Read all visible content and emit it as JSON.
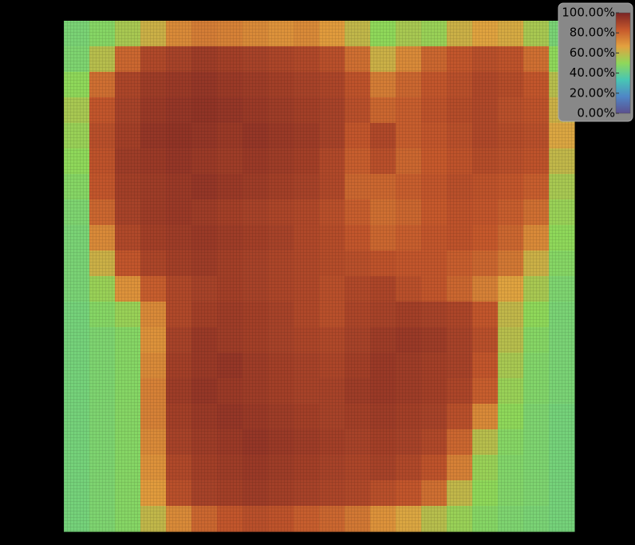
{
  "chart_data": {
    "type": "heatmap",
    "colorscale": [
      "#5b4f8e",
      "#4f86c6",
      "#48c6b4",
      "#8fd85a",
      "#e3a13f",
      "#c5582c",
      "#7a2424"
    ],
    "zlim": [
      0,
      100
    ],
    "zticks": [
      {
        "value": 0,
        "label": "0.00%"
      },
      {
        "value": 20,
        "label": "20.00%"
      },
      {
        "value": 40,
        "label": "40.00%"
      },
      {
        "value": 60,
        "label": "60.00%"
      },
      {
        "value": 80,
        "label": "80.00%"
      },
      {
        "value": 100,
        "label": "100.00%"
      }
    ],
    "z": [
      [
        45,
        48,
        55,
        62,
        72,
        75,
        74,
        72,
        70,
        72,
        68,
        60,
        50,
        55,
        52,
        62,
        66,
        64,
        55,
        45
      ],
      [
        46,
        58,
        80,
        88,
        90,
        92,
        91,
        90,
        89,
        88,
        86,
        78,
        62,
        72,
        80,
        84,
        86,
        85,
        78,
        50
      ],
      [
        50,
        78,
        89,
        92,
        93,
        94,
        93,
        92,
        91,
        90,
        89,
        85,
        75,
        80,
        84,
        86,
        88,
        87,
        84,
        58
      ],
      [
        55,
        84,
        90,
        93,
        94,
        95,
        94,
        93,
        92,
        91,
        90,
        86,
        80,
        82,
        85,
        87,
        88,
        86,
        85,
        62
      ],
      [
        52,
        86,
        91,
        94,
        95,
        94,
        93,
        94,
        93,
        92,
        90,
        84,
        88,
        82,
        84,
        86,
        88,
        87,
        86,
        65
      ],
      [
        50,
        85,
        92,
        93,
        94,
        93,
        92,
        93,
        92,
        91,
        88,
        82,
        86,
        80,
        83,
        85,
        87,
        86,
        85,
        60
      ],
      [
        48,
        84,
        91,
        92,
        93,
        94,
        93,
        92,
        91,
        90,
        88,
        80,
        80,
        82,
        84,
        86,
        85,
        84,
        82,
        55
      ],
      [
        46,
        80,
        90,
        92,
        93,
        92,
        91,
        90,
        89,
        88,
        86,
        82,
        78,
        80,
        83,
        85,
        84,
        82,
        78,
        52
      ],
      [
        45,
        72,
        88,
        91,
        92,
        93,
        92,
        91,
        90,
        88,
        87,
        84,
        80,
        82,
        84,
        85,
        83,
        80,
        72,
        50
      ],
      [
        45,
        62,
        84,
        89,
        91,
        92,
        91,
        90,
        89,
        88,
        87,
        86,
        85,
        84,
        84,
        82,
        80,
        76,
        62,
        48
      ],
      [
        45,
        52,
        70,
        82,
        88,
        90,
        91,
        90,
        89,
        88,
        86,
        88,
        89,
        86,
        84,
        80,
        74,
        66,
        55,
        46
      ],
      [
        44,
        48,
        52,
        72,
        88,
        91,
        92,
        91,
        90,
        88,
        86,
        89,
        90,
        91,
        90,
        89,
        84,
        60,
        50,
        45
      ],
      [
        44,
        46,
        48,
        70,
        90,
        93,
        92,
        91,
        90,
        89,
        88,
        90,
        92,
        93,
        92,
        90,
        86,
        58,
        48,
        45
      ],
      [
        44,
        46,
        48,
        72,
        91,
        93,
        94,
        92,
        91,
        90,
        89,
        91,
        93,
        92,
        91,
        90,
        84,
        55,
        47,
        45
      ],
      [
        44,
        46,
        48,
        74,
        92,
        94,
        93,
        92,
        91,
        90,
        90,
        92,
        93,
        92,
        91,
        89,
        82,
        52,
        47,
        45
      ],
      [
        44,
        46,
        48,
        74,
        91,
        93,
        94,
        93,
        92,
        91,
        90,
        91,
        92,
        91,
        90,
        86,
        72,
        50,
        46,
        44
      ],
      [
        44,
        46,
        48,
        72,
        90,
        92,
        93,
        94,
        93,
        92,
        91,
        90,
        91,
        90,
        88,
        80,
        58,
        48,
        46,
        44
      ],
      [
        44,
        46,
        48,
        70,
        88,
        91,
        92,
        93,
        92,
        91,
        90,
        89,
        90,
        88,
        85,
        74,
        52,
        47,
        46,
        44
      ],
      [
        44,
        46,
        48,
        68,
        86,
        90,
        91,
        92,
        91,
        90,
        89,
        88,
        86,
        84,
        78,
        60,
        50,
        47,
        46,
        44
      ],
      [
        44,
        46,
        48,
        60,
        72,
        80,
        84,
        86,
        85,
        82,
        80,
        76,
        70,
        65,
        58,
        52,
        48,
        46,
        45,
        44
      ]
    ]
  }
}
